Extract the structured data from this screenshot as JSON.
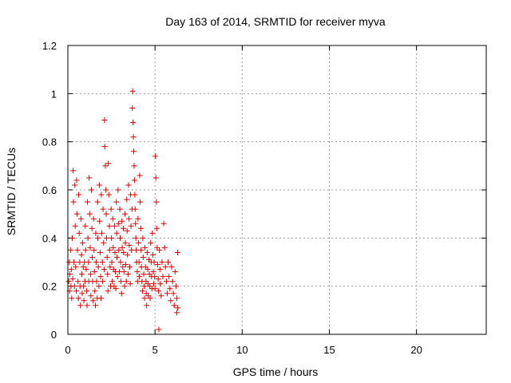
{
  "chart_data": {
    "type": "scatter",
    "title": "Day 163 of 2014, SRMTID for receiver myva",
    "xlabel": "GPS time / hours",
    "ylabel": "SRMTID / TECUs",
    "xlim": [
      0,
      24
    ],
    "ylim": [
      0,
      1.2
    ],
    "xticks": [
      0,
      5,
      10,
      15,
      20
    ],
    "xtick_labels": [
      "0",
      "5",
      "10",
      "15",
      "20"
    ],
    "yticks": [
      0,
      0.2,
      0.4,
      0.6,
      0.8,
      1.0,
      1.2
    ],
    "ytick_labels": [
      "0",
      "0.2",
      "0.4",
      "0.6",
      "0.8",
      "1",
      "1.2"
    ],
    "grid": true,
    "marker": "+",
    "color": "#e00000",
    "series": [
      {
        "name": "SRMTID",
        "points": [
          [
            0.05,
            0.22
          ],
          [
            0.08,
            0.3
          ],
          [
            0.1,
            0.18
          ],
          [
            0.12,
            0.25
          ],
          [
            0.15,
            0.35
          ],
          [
            0.18,
            0.2
          ],
          [
            0.2,
            0.27
          ],
          [
            0.22,
            0.15
          ],
          [
            0.25,
            0.4
          ],
          [
            0.28,
            0.23
          ],
          [
            0.3,
            0.68
          ],
          [
            0.32,
            0.55
          ],
          [
            0.35,
            0.3
          ],
          [
            0.38,
            0.2
          ],
          [
            0.4,
            0.62
          ],
          [
            0.42,
            0.45
          ],
          [
            0.45,
            0.28
          ],
          [
            0.48,
            0.18
          ],
          [
            0.5,
            0.64
          ],
          [
            0.52,
            0.5
          ],
          [
            0.55,
            0.35
          ],
          [
            0.58,
            0.22
          ],
          [
            0.6,
            0.15
          ],
          [
            0.62,
            0.58
          ],
          [
            0.65,
            0.42
          ],
          [
            0.68,
            0.3
          ],
          [
            0.7,
            0.2
          ],
          [
            0.72,
            0.12
          ],
          [
            0.75,
            0.48
          ],
          [
            0.78,
            0.33
          ],
          [
            0.8,
            0.25
          ],
          [
            0.82,
            0.17
          ],
          [
            0.85,
            0.38
          ],
          [
            0.88,
            0.28
          ],
          [
            0.9,
            0.2
          ],
          [
            0.92,
            0.14
          ],
          [
            0.95,
            0.3
          ],
          [
            0.98,
            0.22
          ],
          [
            1.0,
            0.45
          ],
          [
            1.02,
            0.35
          ],
          [
            1.05,
            0.27
          ],
          [
            1.08,
            0.18
          ],
          [
            1.1,
            0.12
          ],
          [
            1.12,
            0.55
          ],
          [
            1.15,
            0.4
          ],
          [
            1.18,
            0.3
          ],
          [
            1.2,
            0.22
          ],
          [
            1.22,
            0.65
          ],
          [
            1.25,
            0.5
          ],
          [
            1.28,
            0.36
          ],
          [
            1.3,
            0.25
          ],
          [
            1.32,
            0.16
          ],
          [
            1.35,
            0.6
          ],
          [
            1.38,
            0.44
          ],
          [
            1.4,
            0.32
          ],
          [
            1.42,
            0.22
          ],
          [
            1.45,
            0.14
          ],
          [
            1.48,
            0.48
          ],
          [
            1.5,
            0.35
          ],
          [
            1.52,
            0.26
          ],
          [
            1.55,
            0.18
          ],
          [
            1.58,
            0.12
          ],
          [
            1.6,
            0.42
          ],
          [
            1.62,
            0.3
          ],
          [
            1.65,
            0.22
          ],
          [
            1.68,
            0.15
          ],
          [
            1.7,
            0.55
          ],
          [
            1.72,
            0.4
          ],
          [
            1.75,
            0.28
          ],
          [
            1.78,
            0.2
          ],
          [
            1.8,
            0.62
          ],
          [
            1.82,
            0.47
          ],
          [
            1.85,
            0.34
          ],
          [
            1.88,
            0.24
          ],
          [
            1.9,
            0.15
          ],
          [
            1.92,
            0.58
          ],
          [
            1.95,
            0.42
          ],
          [
            1.98,
            0.3
          ],
          [
            2.0,
            0.22
          ],
          [
            2.02,
            0.52
          ],
          [
            2.05,
            0.38
          ],
          [
            2.08,
            0.27
          ],
          [
            2.1,
            0.89
          ],
          [
            2.12,
            0.78
          ],
          [
            2.15,
            0.7
          ],
          [
            2.18,
            0.6
          ],
          [
            2.2,
            0.5
          ],
          [
            2.22,
            0.4
          ],
          [
            2.25,
            0.32
          ],
          [
            2.28,
            0.25
          ],
          [
            2.3,
            0.18
          ],
          [
            2.32,
            0.71
          ],
          [
            2.35,
            0.58
          ],
          [
            2.38,
            0.45
          ],
          [
            2.4,
            0.35
          ],
          [
            2.42,
            0.28
          ],
          [
            2.45,
            0.2
          ],
          [
            2.48,
            0.52
          ],
          [
            2.5,
            0.4
          ],
          [
            2.52,
            0.3
          ],
          [
            2.55,
            0.22
          ],
          [
            2.58,
            0.48
          ],
          [
            2.6,
            0.36
          ],
          [
            2.62,
            0.27
          ],
          [
            2.65,
            0.2
          ],
          [
            2.68,
            0.45
          ],
          [
            2.7,
            0.34
          ],
          [
            2.72,
            0.26
          ],
          [
            2.75,
            0.19
          ],
          [
            2.78,
            0.55
          ],
          [
            2.8,
            0.42
          ],
          [
            2.82,
            0.32
          ],
          [
            2.85,
            0.24
          ],
          [
            2.88,
            0.6
          ],
          [
            2.9,
            0.46
          ],
          [
            2.92,
            0.35
          ],
          [
            2.95,
            0.26
          ],
          [
            2.98,
            0.52
          ],
          [
            3.0,
            0.4
          ],
          [
            3.02,
            0.3
          ],
          [
            3.05,
            0.22
          ],
          [
            3.08,
            0.17
          ],
          [
            3.1,
            0.47
          ],
          [
            3.12,
            0.36
          ],
          [
            3.15,
            0.28
          ],
          [
            3.18,
            0.44
          ],
          [
            3.2,
            0.34
          ],
          [
            3.22,
            0.26
          ],
          [
            3.25,
            0.2
          ],
          [
            3.28,
            0.5
          ],
          [
            3.3,
            0.38
          ],
          [
            3.32,
            0.29
          ],
          [
            3.35,
            0.22
          ],
          [
            3.38,
            0.56
          ],
          [
            3.4,
            0.43
          ],
          [
            3.42,
            0.33
          ],
          [
            3.45,
            0.25
          ],
          [
            3.48,
            0.62
          ],
          [
            3.5,
            0.48
          ],
          [
            3.52,
            0.37
          ],
          [
            3.55,
            0.28
          ],
          [
            3.58,
            0.21
          ],
          [
            3.6,
            0.58
          ],
          [
            3.62,
            0.45
          ],
          [
            3.65,
            0.35
          ],
          [
            3.68,
            0.52
          ],
          [
            3.7,
            0.94
          ],
          [
            3.72,
            1.01
          ],
          [
            3.74,
            0.88
          ],
          [
            3.76,
            0.82
          ],
          [
            3.78,
            0.76
          ],
          [
            3.8,
            0.7
          ],
          [
            3.82,
            0.64
          ],
          [
            3.84,
            0.58
          ],
          [
            3.86,
            0.52
          ],
          [
            3.88,
            0.46
          ],
          [
            3.9,
            0.4
          ],
          [
            3.92,
            0.35
          ],
          [
            3.95,
            0.3
          ],
          [
            3.98,
            0.26
          ],
          [
            4.0,
            0.22
          ],
          [
            4.02,
            0.48
          ],
          [
            4.05,
            0.38
          ],
          [
            4.08,
            0.3
          ],
          [
            4.1,
            0.24
          ],
          [
            4.12,
            0.66
          ],
          [
            4.15,
            0.55
          ],
          [
            4.18,
            0.44
          ],
          [
            4.2,
            0.35
          ],
          [
            4.22,
            0.28
          ],
          [
            4.25,
            0.22
          ],
          [
            4.28,
            0.18
          ],
          [
            4.3,
            0.4
          ],
          [
            4.32,
            0.32
          ],
          [
            4.35,
            0.25
          ],
          [
            4.38,
            0.2
          ],
          [
            4.4,
            0.15
          ],
          [
            4.42,
            0.36
          ],
          [
            4.45,
            0.28
          ],
          [
            4.48,
            0.22
          ],
          [
            4.5,
            0.17
          ],
          [
            4.52,
            0.12
          ],
          [
            4.55,
            0.34
          ],
          [
            4.58,
            0.27
          ],
          [
            4.6,
            0.21
          ],
          [
            4.62,
            0.16
          ],
          [
            4.65,
            0.31
          ],
          [
            4.68,
            0.25
          ],
          [
            4.7,
            0.2
          ],
          [
            4.72,
            0.15
          ],
          [
            4.75,
            0.38
          ],
          [
            4.78,
            0.3
          ],
          [
            4.8,
            0.24
          ],
          [
            4.82,
            0.19
          ],
          [
            4.85,
            0.42
          ],
          [
            4.88,
            0.33
          ],
          [
            4.9,
            0.26
          ],
          [
            4.92,
            0.21
          ],
          [
            4.95,
            0.3
          ],
          [
            4.98,
            0.24
          ],
          [
            5.0,
            0.19
          ],
          [
            5.02,
            0.74
          ],
          [
            5.05,
            0.65
          ],
          [
            5.08,
            0.55
          ],
          [
            5.1,
            0.44
          ],
          [
            5.12,
            0.36
          ],
          [
            5.15,
            0.29
          ],
          [
            5.18,
            0.23
          ],
          [
            5.2,
            0.18
          ],
          [
            5.22,
            0.02
          ],
          [
            5.25,
            0.35
          ],
          [
            5.28,
            0.27
          ],
          [
            5.3,
            0.21
          ],
          [
            5.35,
            0.16
          ],
          [
            5.4,
            0.3
          ],
          [
            5.45,
            0.24
          ],
          [
            5.5,
            0.46
          ],
          [
            5.55,
            0.36
          ],
          [
            5.6,
            0.28
          ],
          [
            5.65,
            0.22
          ],
          [
            5.7,
            0.17
          ],
          [
            5.75,
            0.3
          ],
          [
            5.8,
            0.24
          ],
          [
            5.85,
            0.19
          ],
          [
            5.9,
            0.14
          ],
          [
            5.95,
            0.28
          ],
          [
            6.0,
            0.22
          ],
          [
            6.05,
            0.17
          ],
          [
            6.1,
            0.12
          ],
          [
            6.15,
            0.26
          ],
          [
            6.2,
            0.2
          ],
          [
            6.25,
            0.15
          ],
          [
            6.3,
            0.11
          ],
          [
            6.3,
            0.34
          ],
          [
            6.25,
            0.09
          ]
        ]
      }
    ]
  }
}
